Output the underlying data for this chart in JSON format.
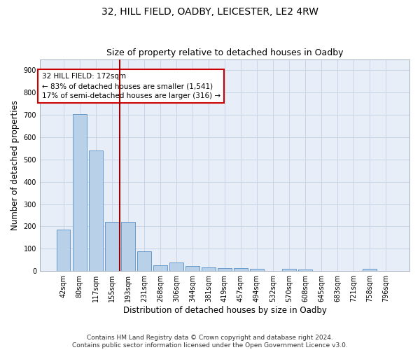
{
  "title1": "32, HILL FIELD, OADBY, LEICESTER, LE2 4RW",
  "title2": "Size of property relative to detached houses in Oadby",
  "xlabel": "Distribution of detached houses by size in Oadby",
  "ylabel": "Number of detached properties",
  "categories": [
    "42sqm",
    "80sqm",
    "117sqm",
    "155sqm",
    "193sqm",
    "231sqm",
    "268sqm",
    "306sqm",
    "344sqm",
    "381sqm",
    "419sqm",
    "457sqm",
    "494sqm",
    "532sqm",
    "570sqm",
    "608sqm",
    "645sqm",
    "683sqm",
    "721sqm",
    "758sqm",
    "796sqm"
  ],
  "values": [
    185,
    705,
    540,
    220,
    220,
    90,
    27,
    37,
    23,
    15,
    12,
    12,
    10,
    0,
    10,
    8,
    0,
    0,
    0,
    10,
    0
  ],
  "bar_color": "#b8d0e8",
  "bar_edge_color": "#6699cc",
  "vline_color": "#990000",
  "annotation_text": "32 HILL FIELD: 172sqm\n← 83% of detached houses are smaller (1,541)\n17% of semi-detached houses are larger (316) →",
  "annotation_box_color": "white",
  "annotation_box_edge": "#cc0000",
  "ylim": [
    0,
    950
  ],
  "yticks": [
    0,
    100,
    200,
    300,
    400,
    500,
    600,
    700,
    800,
    900
  ],
  "footer": "Contains HM Land Registry data © Crown copyright and database right 2024.\nContains public sector information licensed under the Open Government Licence v3.0.",
  "bg_color": "#e8eef8",
  "grid_color": "#c8d4e8",
  "title_fontsize": 10,
  "subtitle_fontsize": 9,
  "axis_label_fontsize": 8.5,
  "tick_fontsize": 7,
  "footer_fontsize": 6.5
}
